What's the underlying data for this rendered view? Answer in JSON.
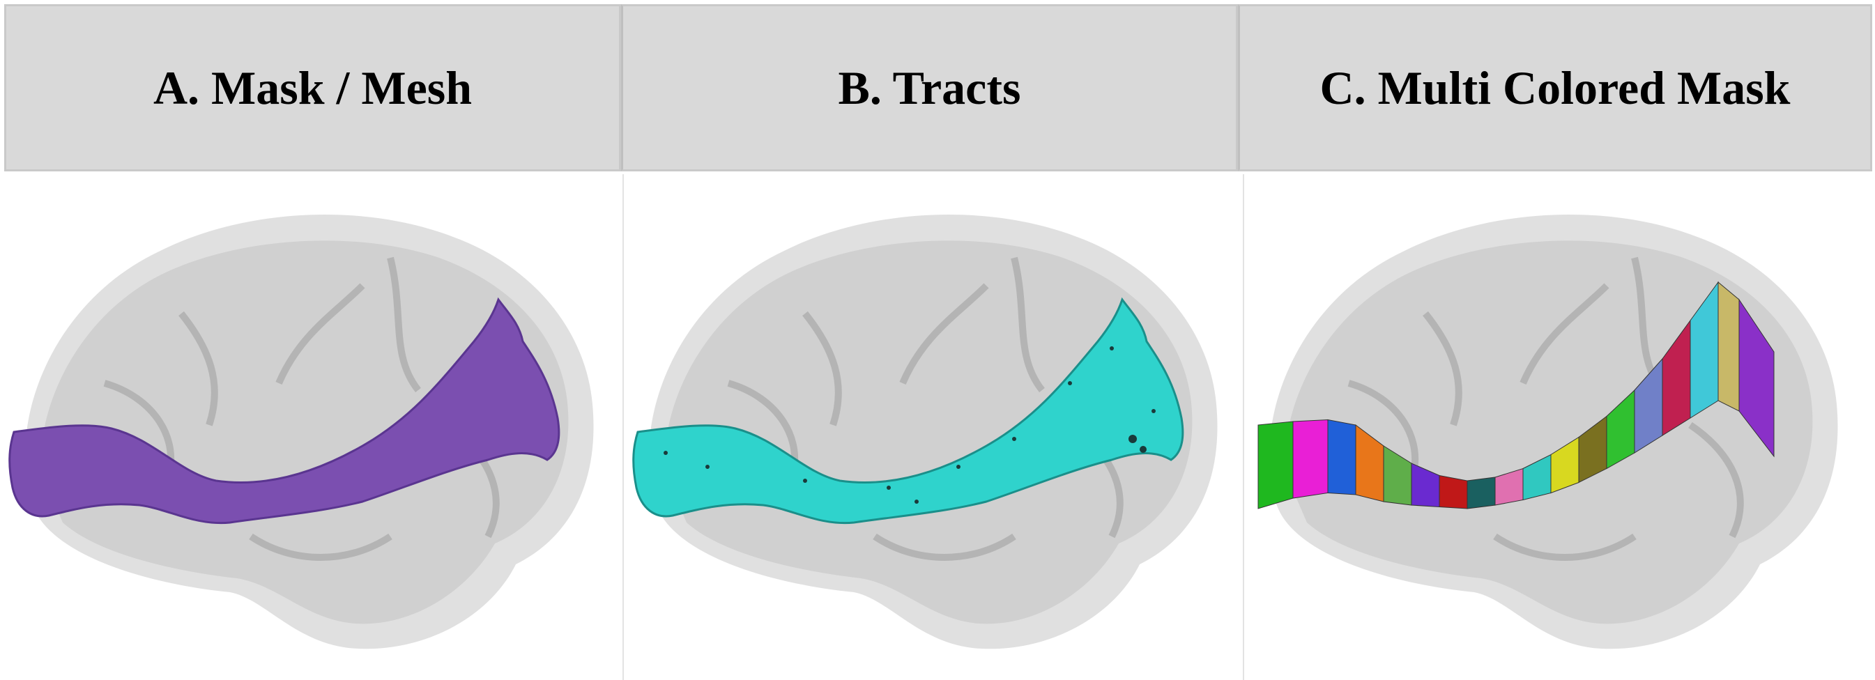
{
  "panels": [
    {
      "title": "A. Mask / Mesh",
      "tract_color": "#7b4fb0"
    },
    {
      "title": "B. Tracts",
      "tract_color": "#2fd3cc"
    },
    {
      "title": "C. Multi Colored Mask",
      "segment_colors": [
        "#1fb81f",
        "#e91fd6",
        "#2060d8",
        "#e8761a",
        "#5fae4a",
        "#6a2ad0",
        "#c01818",
        "#1a6060",
        "#e070b0",
        "#30c8c0",
        "#d8d820",
        "#7a7020",
        "#30c030",
        "#7080c8",
        "#c02050",
        "#40c8d8",
        "#c8b868",
        "#8a30c8",
        "#e01870"
      ]
    }
  ],
  "brain_color": "#cfcfcf"
}
